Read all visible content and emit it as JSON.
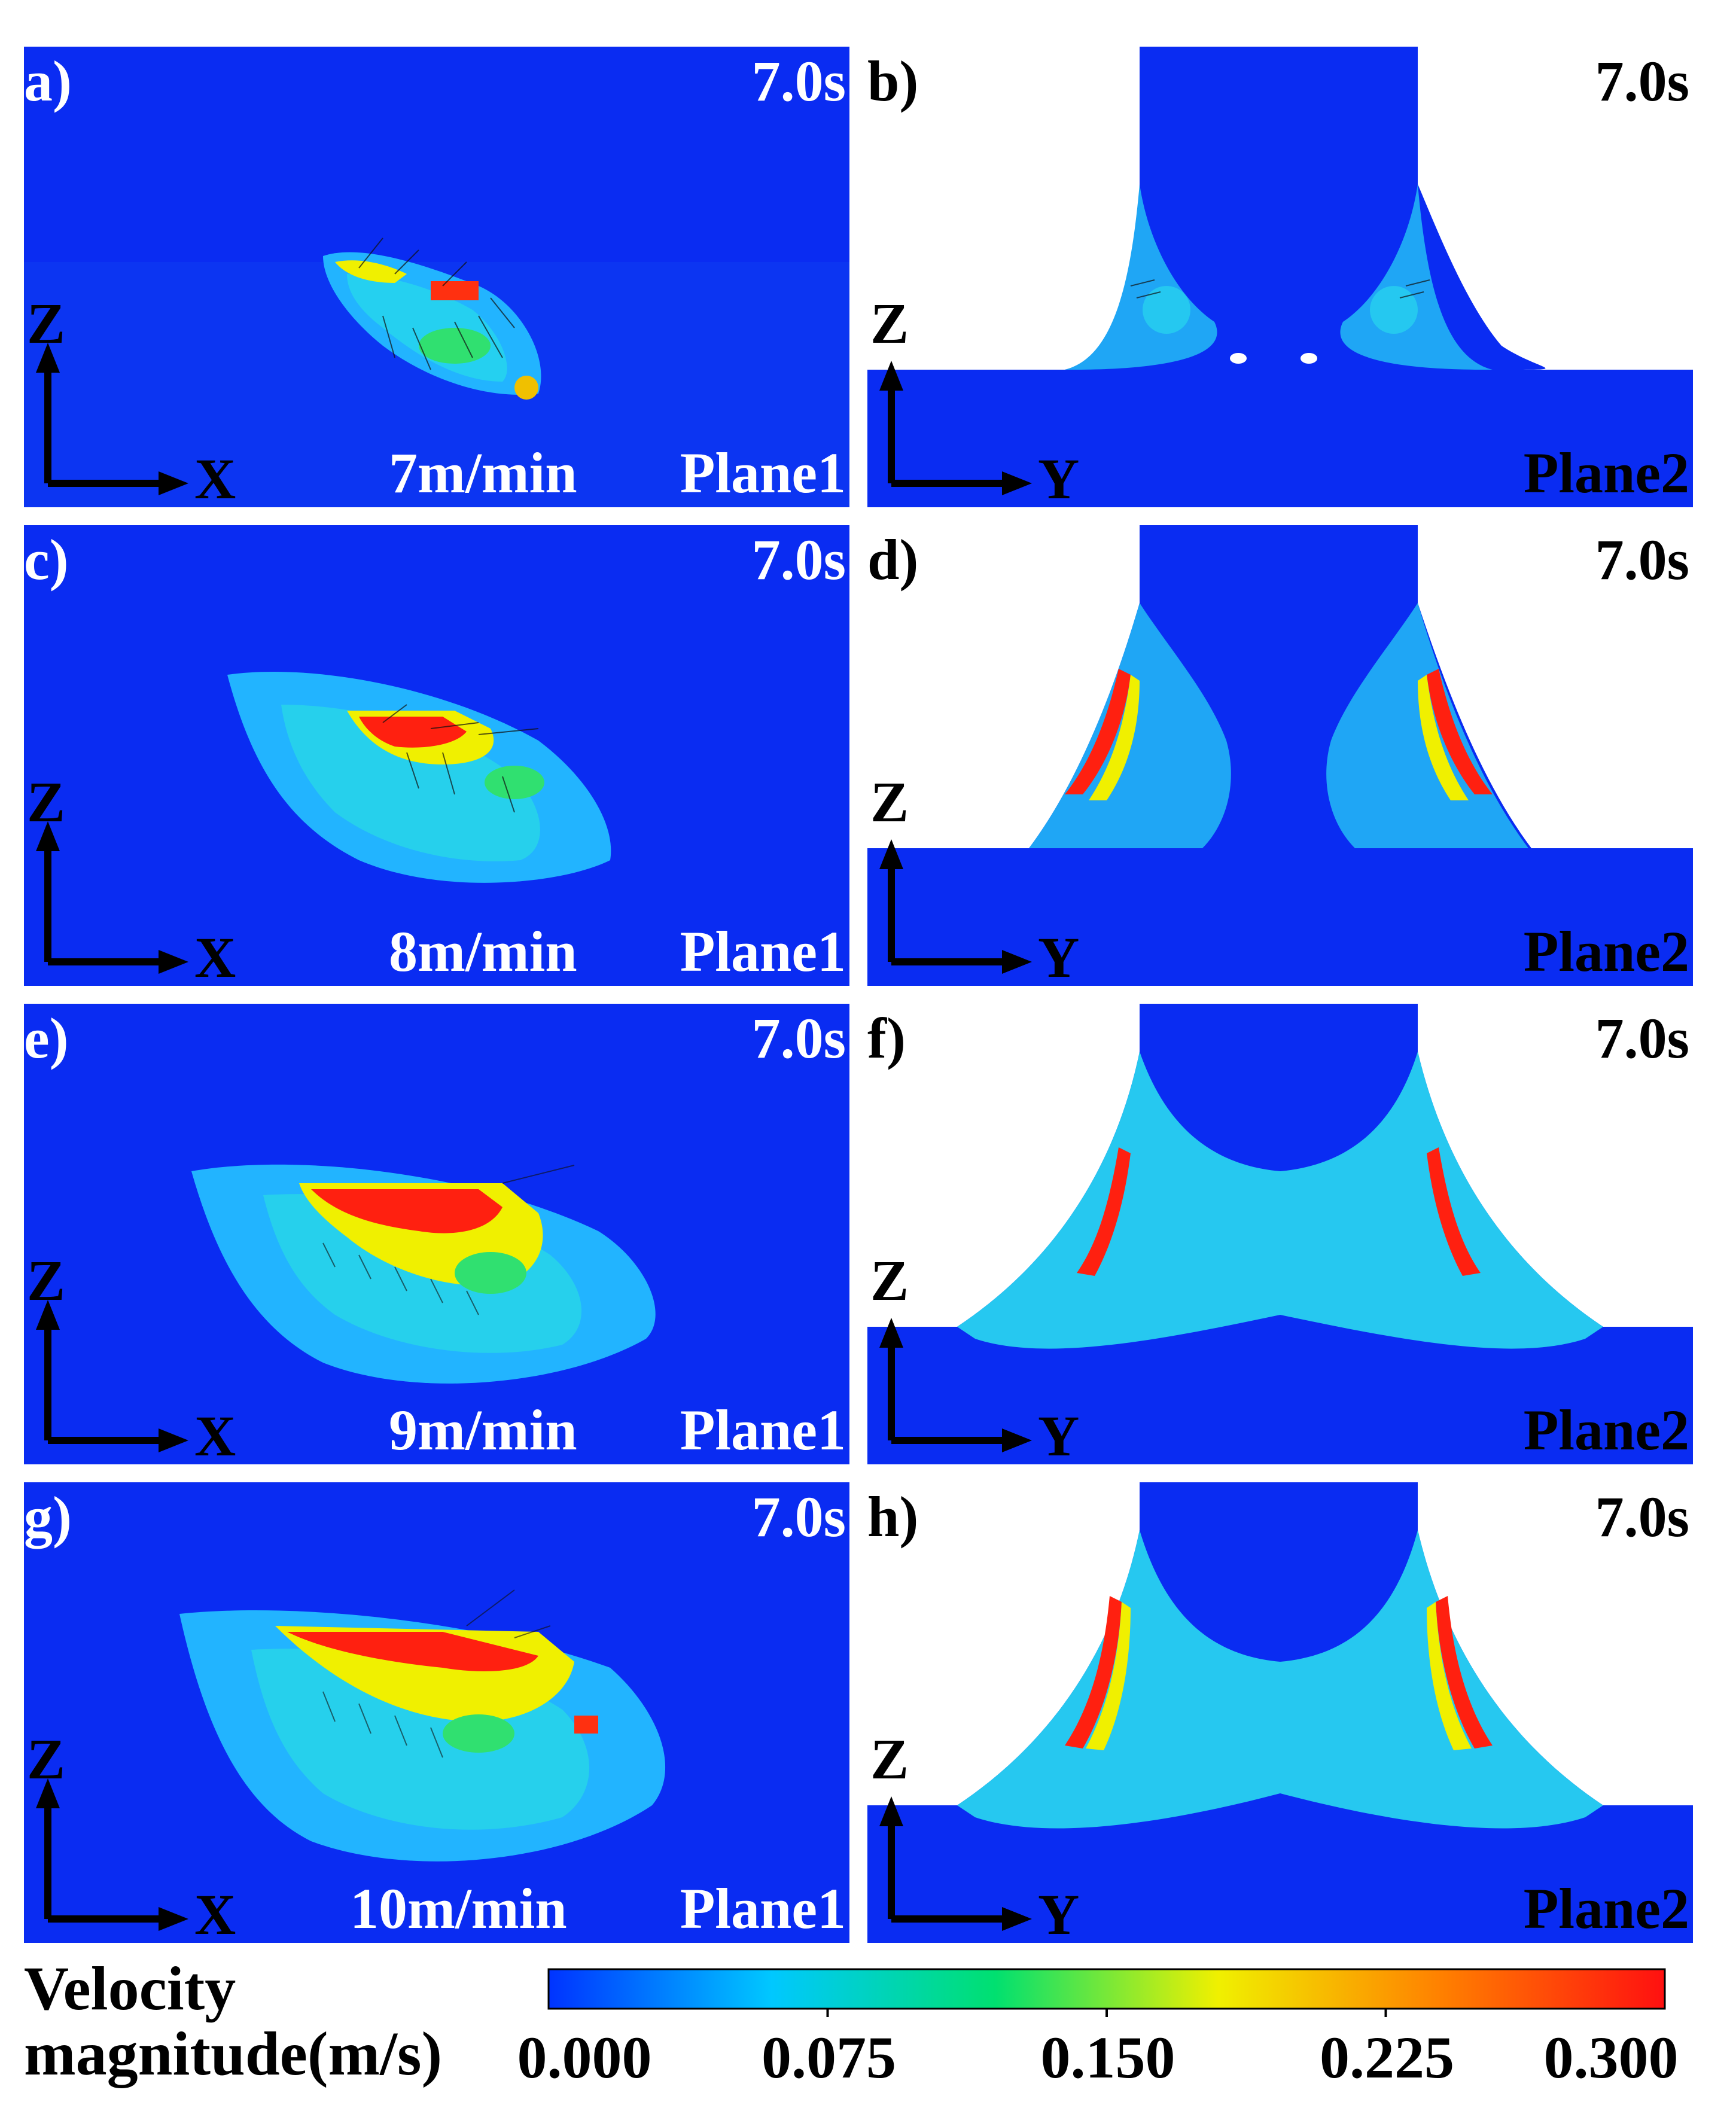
{
  "panels": [
    {
      "id": "a",
      "tag": "a)",
      "time": "7.0s",
      "speed": "7m/min",
      "plane": "Plane1",
      "axis_h": "X",
      "axis_v": "Z"
    },
    {
      "id": "b",
      "tag": "b)",
      "time": "7.0s",
      "plane": "Plane2",
      "axis_h": "Y",
      "axis_v": "Z"
    },
    {
      "id": "c",
      "tag": "c)",
      "time": "7.0s",
      "speed": "8m/min",
      "plane": "Plane1",
      "axis_h": "X",
      "axis_v": "Z"
    },
    {
      "id": "d",
      "tag": "d)",
      "time": "7.0s",
      "plane": "Plane2",
      "axis_h": "Y",
      "axis_v": "Z"
    },
    {
      "id": "e",
      "tag": "e)",
      "time": "7.0s",
      "speed": "9m/min",
      "plane": "Plane1",
      "axis_h": "X",
      "axis_v": "Z"
    },
    {
      "id": "f",
      "tag": "f)",
      "time": "7.0s",
      "plane": "Plane2",
      "axis_h": "Y",
      "axis_v": "Z"
    },
    {
      "id": "g",
      "tag": "g)",
      "time": "7.0s",
      "speed": "10m/min",
      "plane": "Plane1",
      "axis_h": "X",
      "axis_v": "Z"
    },
    {
      "id": "h",
      "tag": "h)",
      "time": "7.0s",
      "plane": "Plane2",
      "axis_h": "Y",
      "axis_v": "Z"
    }
  ],
  "colorbar": {
    "title_line1": "Velocity",
    "title_line2": "magnitude(m/s)",
    "ticks": [
      "0.000",
      "0.075",
      "0.150",
      "0.225",
      "0.300"
    ],
    "min": 0.0,
    "max": 0.3,
    "colors": [
      "#0033ff",
      "#00c8ff",
      "#00e070",
      "#f0f000",
      "#ff8000",
      "#ff1010"
    ]
  },
  "colors": {
    "background_fluid": "#0a2cf2",
    "wall": "#ffffff"
  }
}
